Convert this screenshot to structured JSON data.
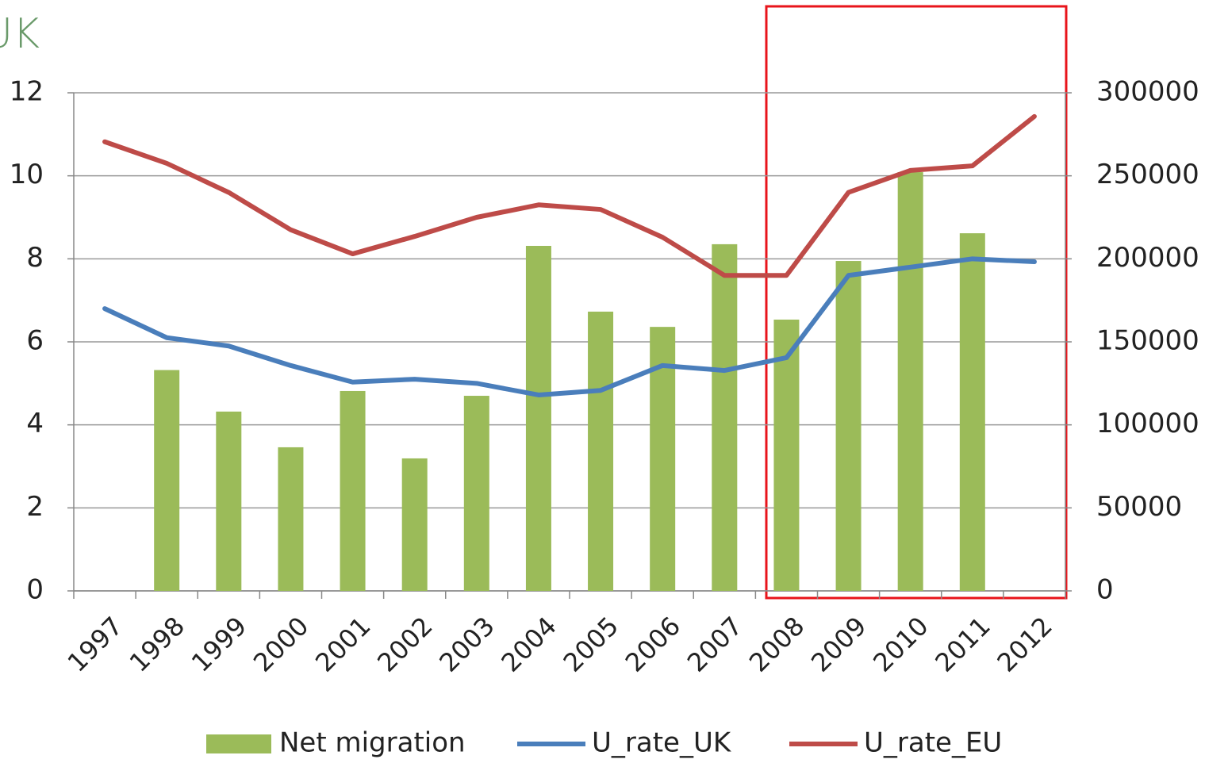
{
  "chart_data": {
    "type": "bar_line",
    "title": "UK",
    "categories": [
      "1997",
      "1998",
      "1999",
      "2000",
      "2001",
      "2002",
      "2003",
      "2004",
      "2005",
      "2006",
      "2007",
      "2008",
      "2009",
      "2010",
      "2011",
      "2012"
    ],
    "series": [
      {
        "name": "Net migration",
        "type": "bar",
        "axis": "y2",
        "color": "#9bbb59",
        "values": [
          null,
          133000,
          108000,
          86500,
          120400,
          79800,
          117500,
          207800,
          168200,
          159000,
          208800,
          163400,
          198700,
          252200,
          215400,
          null
        ]
      },
      {
        "name": "U_rate_UK",
        "type": "line",
        "axis": "y",
        "color": "#4a7ebb",
        "values": [
          6.8,
          6.1,
          5.9,
          5.43,
          5.03,
          5.1,
          5.0,
          4.72,
          4.83,
          5.43,
          5.31,
          5.62,
          7.6,
          7.8,
          8.0,
          7.93
        ]
      },
      {
        "name": "U_rate_EU",
        "type": "line",
        "axis": "y",
        "color": "#be4b48",
        "values": [
          10.82,
          10.3,
          9.6,
          8.7,
          8.12,
          8.54,
          9.0,
          9.3,
          9.19,
          8.52,
          7.6,
          7.6,
          9.6,
          10.13,
          10.24,
          11.43
        ]
      }
    ],
    "ylim": [
      0,
      12
    ],
    "yticks": [
      0,
      2,
      4,
      6,
      8,
      10,
      12
    ],
    "y2lim": [
      0,
      300000
    ],
    "y2ticks": [
      0,
      50000,
      100000,
      150000,
      200000,
      250000,
      300000
    ],
    "grid": true,
    "legend": "bottom"
  }
}
